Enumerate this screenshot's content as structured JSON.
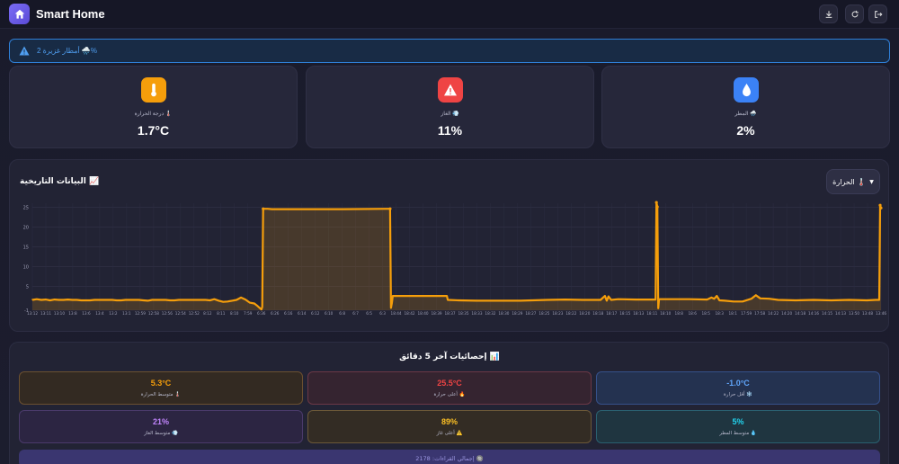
{
  "app": {
    "title": "Smart Home"
  },
  "toolbar": {
    "download_icon": "download-icon",
    "refresh_icon": "refresh-icon",
    "logout_icon": "logout-icon"
  },
  "alert": {
    "text": "أمطار غزيرة 2 🌧️%"
  },
  "cards": [
    {
      "label": "درجة الحرارة 🌡️",
      "value": "1.7°C",
      "icon": "thermometer-icon",
      "color": "#f59e0b"
    },
    {
      "label": "الغاز 💨",
      "value": "11%",
      "icon": "warning-icon",
      "color": "#ef4444"
    },
    {
      "label": "المطر 🌧️",
      "value": "2%",
      "icon": "droplet-icon",
      "color": "#3b82f6"
    }
  ],
  "history": {
    "title": "البيانات التاريخية 📈",
    "dropdown_label": "الحرارة 🌡️"
  },
  "chart_data": {
    "type": "area",
    "title": "",
    "xlabel": "",
    "ylabel": "",
    "ylim": [
      -1,
      26
    ],
    "yticks": [
      "-1",
      "5",
      "10",
      "15",
      "20",
      "25"
    ],
    "x_labels": [
      "13:12",
      "13:11",
      "13:10",
      "13:8",
      "13:6",
      "13:4",
      "13:2",
      "13:1",
      "12:59",
      "12:58",
      "12:56",
      "12:54",
      "12:52",
      "8:12",
      "8:11",
      "8:10",
      "7:59",
      "6:36",
      "6:26",
      "6:16",
      "6:14",
      "6:12",
      "6:10",
      "6:8",
      "6:7",
      "6:5",
      "6:3",
      "18:44",
      "18:42",
      "18:40",
      "18:39",
      "18:37",
      "18:35",
      "18:33",
      "18:32",
      "18:30",
      "18:29",
      "18:27",
      "18:25",
      "18:23",
      "18:22",
      "18:20",
      "18:18",
      "18:17",
      "18:15",
      "18:13",
      "18:11",
      "18:10",
      "18:8",
      "18:6",
      "18:5",
      "18:3",
      "18:1",
      "17:59",
      "17:58",
      "14:22",
      "14:20",
      "14:18",
      "14:16",
      "14:15",
      "14:13",
      "13:50",
      "13:48",
      "13:46"
    ],
    "series": [
      {
        "points": [
          [
            0,
            1.6
          ],
          [
            5,
            1.8
          ],
          [
            10,
            1.6
          ],
          [
            15,
            1.7
          ],
          [
            20,
            1.5
          ],
          [
            25,
            1.7
          ],
          [
            30,
            1.6
          ],
          [
            35,
            1.6
          ],
          [
            40,
            1.7
          ],
          [
            45,
            1.6
          ],
          [
            50,
            1.6
          ],
          [
            55,
            1.5
          ],
          [
            60,
            1.5
          ],
          [
            65,
            1.5
          ],
          [
            70,
            1.6
          ],
          [
            75,
            1.6
          ],
          [
            80,
            1.6
          ],
          [
            85,
            1.6
          ],
          [
            90,
            1.6
          ],
          [
            95,
            1.5
          ],
          [
            100,
            1.5
          ],
          [
            105,
            1.6
          ],
          [
            110,
            1.6
          ],
          [
            115,
            1.6
          ],
          [
            120,
            1.6
          ],
          [
            125,
            1.5
          ],
          [
            130,
            1.4
          ],
          [
            135,
            1.6
          ],
          [
            140,
            1.6
          ],
          [
            145,
            1.6
          ],
          [
            150,
            1.6
          ],
          [
            155,
            1.5
          ],
          [
            160,
            1.5
          ],
          [
            165,
            1.6
          ],
          [
            170,
            1.6
          ],
          [
            175,
            1.6
          ],
          [
            180,
            1.6
          ],
          [
            185,
            1.6
          ],
          [
            190,
            1.6
          ],
          [
            195,
            1.6
          ],
          [
            200,
            1.5
          ],
          [
            205,
            1.8
          ],
          [
            210,
            1.4
          ],
          [
            215,
            1.1
          ],
          [
            220,
            1.2
          ],
          [
            225,
            1.4
          ],
          [
            230,
            1.6
          ],
          [
            235,
            2.2
          ],
          [
            240,
            1.7
          ],
          [
            245,
            0.9
          ],
          [
            250,
            0.7
          ],
          [
            253,
            0.2
          ],
          [
            256,
            -0.4
          ],
          [
            258,
            -0.8
          ],
          [
            259,
            -0.2
          ],
          [
            260,
            24.6
          ],
          [
            265,
            24.6
          ],
          [
            270,
            24.5
          ],
          [
            300,
            24.5
          ],
          [
            350,
            24.5
          ],
          [
            400,
            24.6
          ],
          [
            403,
            24.6
          ],
          [
            404,
            -0.4
          ],
          [
            405,
            0.8
          ],
          [
            406,
            2.6
          ],
          [
            410,
            2.6
          ],
          [
            420,
            2.6
          ],
          [
            450,
            2.6
          ],
          [
            467,
            2.6
          ],
          [
            468,
            1.6
          ],
          [
            480,
            1.5
          ],
          [
            500,
            1.4
          ],
          [
            520,
            1.4
          ],
          [
            550,
            1.4
          ],
          [
            580,
            1.6
          ],
          [
            600,
            1.7
          ],
          [
            620,
            1.6
          ],
          [
            640,
            1.6
          ],
          [
            645,
            2.6
          ],
          [
            647,
            1.4
          ],
          [
            649,
            2.5
          ],
          [
            652,
            1.6
          ],
          [
            660,
            1.8
          ],
          [
            680,
            1.7
          ],
          [
            702,
            1.7
          ],
          [
            703,
            26.2
          ],
          [
            704,
            25.1
          ],
          [
            705,
            -0.5
          ],
          [
            706,
            1.8
          ],
          [
            720,
            1.8
          ],
          [
            740,
            1.8
          ],
          [
            760,
            1.7
          ],
          [
            765,
            2.2
          ],
          [
            768,
            1.9
          ],
          [
            771,
            2.6
          ],
          [
            774,
            1.5
          ],
          [
            780,
            1.4
          ],
          [
            790,
            1.2
          ],
          [
            800,
            1.2
          ],
          [
            810,
            1.9
          ],
          [
            815,
            2.8
          ],
          [
            820,
            2.0
          ],
          [
            830,
            1.9
          ],
          [
            840,
            1.6
          ],
          [
            860,
            1.5
          ],
          [
            880,
            1.6
          ],
          [
            900,
            1.5
          ],
          [
            920,
            1.6
          ],
          [
            940,
            1.5
          ],
          [
            950,
            1.6
          ],
          [
            954,
            1.6
          ],
          [
            955,
            25.5
          ],
          [
            956,
            24.8
          ]
        ]
      }
    ]
  },
  "stats": {
    "title": "إحصائيات آخر 5 دقائق 📊",
    "items": [
      {
        "value": "5.3°C",
        "label": "متوسط الحرارة 🌡️",
        "color": "#f59e0b",
        "bg": "#332a22",
        "border": "#6b5030"
      },
      {
        "value": "25.5°C",
        "label": "أعلى حرارة 🔥",
        "color": "#ef4444",
        "bg": "#352430",
        "border": "#6b3846"
      },
      {
        "value": "-1.0°C",
        "label": "أقل حرارة ❄️",
        "color": "#60a5fa",
        "bg": "#243250",
        "border": "#35508a"
      },
      {
        "value": "21%",
        "label": "متوسط الغاز 💨",
        "color": "#c084fc",
        "bg": "#2c2542",
        "border": "#4a3a6a"
      },
      {
        "value": "89%",
        "label": "أعلى غاز ⚠️",
        "color": "#fbbf24",
        "bg": "#332c24",
        "border": "#6b5838"
      },
      {
        "value": "5%",
        "label": "متوسط المطر 💧",
        "color": "#22d3ee",
        "bg": "#1f3540",
        "border": "#2a6070"
      }
    ],
    "total_label": "إجمالي القراءات: 2178 🔘"
  }
}
